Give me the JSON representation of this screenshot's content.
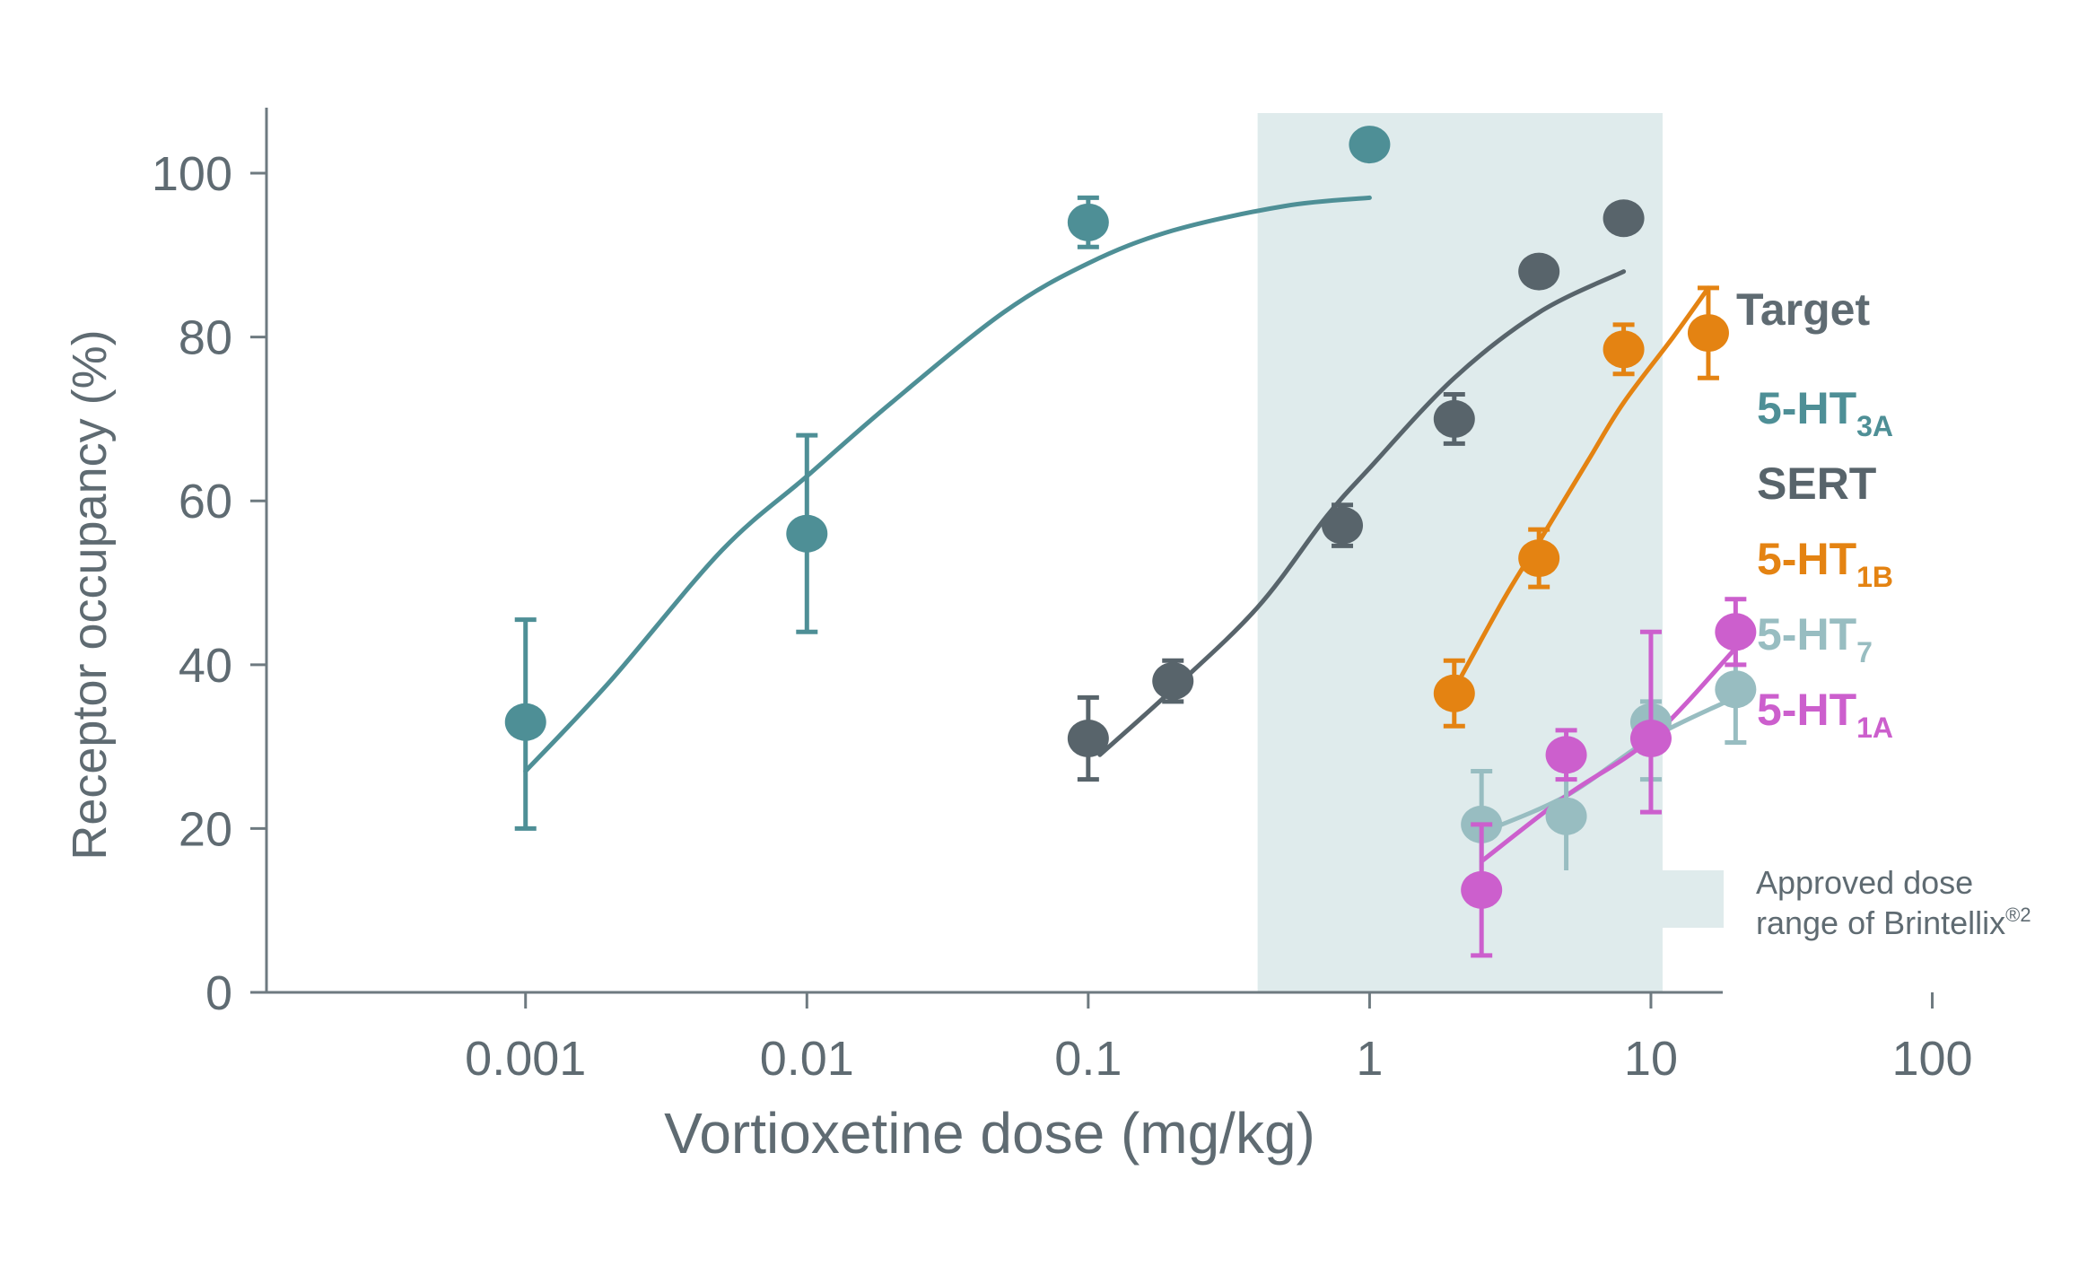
{
  "chart_data": {
    "type": "scatter",
    "xlabel": "Vortioxetine dose (mg/kg)",
    "ylabel": "Receptor occupancy (%)",
    "x_scale": "log",
    "xlim": [
      0.00012,
      18
    ],
    "ylim": [
      0,
      108
    ],
    "x_ticks": [
      0.001,
      0.01,
      0.1,
      1,
      10,
      100
    ],
    "x_tick_labels": [
      "0.001",
      "0.01",
      "0.1",
      "1",
      "10",
      "100"
    ],
    "y_ticks": [
      0,
      20,
      40,
      60,
      80,
      100
    ],
    "y_tick_labels": [
      "0",
      "20",
      "40",
      "60",
      "80",
      "100"
    ],
    "shaded_range": {
      "x": [
        0.4,
        11
      ],
      "label_line1": "Approved dose",
      "label_line2": "range of Brintellix",
      "label_sup": "®2"
    },
    "legend": {
      "title": "Target",
      "position": "right"
    },
    "series": [
      {
        "name": "5-HT",
        "name_sub": "3A",
        "color": "#4e8f96",
        "x": [
          0.001,
          0.01,
          0.1,
          1
        ],
        "y": [
          33,
          56,
          94,
          103.5
        ],
        "err_lo": [
          13,
          12,
          3,
          0
        ],
        "err_hi": [
          12.5,
          12,
          3,
          0
        ],
        "fit": {
          "x": [
            0.001,
            0.002,
            0.005,
            0.01,
            0.02,
            0.05,
            0.1,
            0.2,
            0.5,
            1
          ],
          "y": [
            27,
            38,
            54,
            63,
            72,
            83,
            89,
            93,
            96,
            97
          ]
        }
      },
      {
        "name": "SERT",
        "name_sub": "",
        "color": "#58646b",
        "x": [
          0.1,
          0.2,
          0.8,
          2,
          4,
          8
        ],
        "y": [
          31,
          38,
          57,
          70,
          88,
          94.5
        ],
        "err_lo": [
          5,
          2.5,
          2.5,
          3,
          0,
          0
        ],
        "err_hi": [
          5,
          2.5,
          2.5,
          3,
          0,
          0
        ],
        "fit": {
          "x": [
            0.11,
            0.2,
            0.4,
            0.7,
            1,
            2,
            4,
            8
          ],
          "y": [
            29,
            37,
            47,
            58,
            64,
            75,
            83,
            88
          ]
        }
      },
      {
        "name": "5-HT",
        "name_sub": "1B",
        "color": "#e48312",
        "x": [
          2,
          4,
          8,
          16
        ],
        "y": [
          36.5,
          53,
          78.5,
          80.5
        ],
        "err_lo": [
          4,
          3.5,
          3,
          5.5
        ],
        "err_hi": [
          4,
          3.5,
          3,
          5.5
        ],
        "fit": {
          "x": [
            2,
            3,
            4,
            6,
            8,
            12,
            16
          ],
          "y": [
            37,
            48,
            55,
            65,
            72,
            80,
            86
          ]
        }
      },
      {
        "name": "5-HT",
        "name_sub": "7",
        "color": "#98bdc1",
        "x": [
          2.5,
          5,
          10,
          20
        ],
        "y": [
          20.5,
          21.5,
          33,
          37
        ],
        "err_lo": [
          6.5,
          8.5,
          7,
          6.5
        ],
        "err_hi": [
          6.5,
          8.5,
          2.5,
          6.5
        ],
        "fit": {
          "x": [
            2.5,
            5,
            10,
            20
          ],
          "y": [
            19.5,
            24,
            31,
            36
          ]
        }
      },
      {
        "name": "5-HT",
        "name_sub": "1A",
        "color": "#cc5fcd",
        "x": [
          2.5,
          5,
          10,
          20
        ],
        "y": [
          12.5,
          29,
          31,
          44
        ],
        "err_lo": [
          8,
          3,
          9,
          4
        ],
        "err_hi": [
          8,
          3,
          13,
          4
        ],
        "fit": {
          "x": [
            2.5,
            5,
            10,
            20
          ],
          "y": [
            16,
            24,
            31,
            42
          ]
        }
      }
    ]
  }
}
